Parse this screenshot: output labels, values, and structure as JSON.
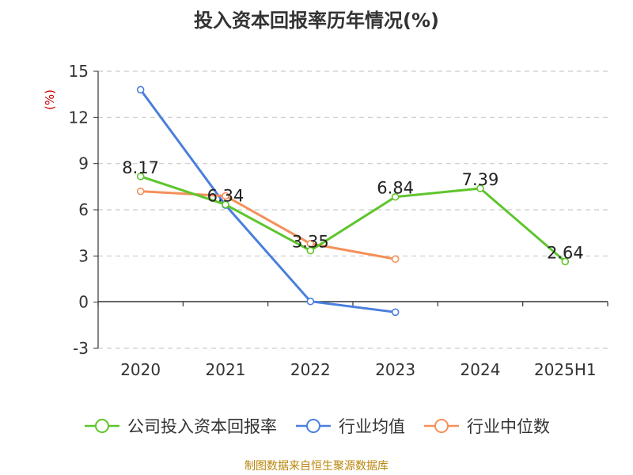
{
  "title": "投入资本回报率历年情况(%)",
  "source": "制图数据来自恒生聚源数据库",
  "colors": {
    "roic": "#5ec52c",
    "industry_avg": "#4a7fdc",
    "industry_median": "#f5905a",
    "ylabel": "#cc0000",
    "grid": "#cccccc",
    "axis": "#333333",
    "source": "#b8860b"
  },
  "chart_data": {
    "type": "line",
    "title": "投入资本回报率历年情况(%)",
    "xlabel": "",
    "ylabel": "(%)",
    "categories": [
      "2020",
      "2021",
      "2022",
      "2023",
      "2024",
      "2025H1"
    ],
    "ylim": [
      -3,
      15
    ],
    "yticks": [
      -3,
      0,
      3,
      6,
      9,
      12,
      15
    ],
    "grid": true,
    "legend_position": "bottom",
    "series": [
      {
        "name": "公司投入资本回报率",
        "values": [
          8.17,
          6.34,
          3.35,
          6.84,
          7.39,
          2.64
        ],
        "labels": [
          "8.17",
          "6.34",
          "3.35",
          "6.84",
          "7.39",
          "2.64"
        ],
        "color": "#5ec52c"
      },
      {
        "name": "行业均值",
        "values": [
          13.8,
          6.3,
          0.05,
          -0.65,
          null,
          null
        ],
        "color": "#4a7fdc"
      },
      {
        "name": "行业中位数",
        "values": [
          7.2,
          6.9,
          3.8,
          2.8,
          null,
          null
        ],
        "color": "#f5905a"
      }
    ]
  }
}
